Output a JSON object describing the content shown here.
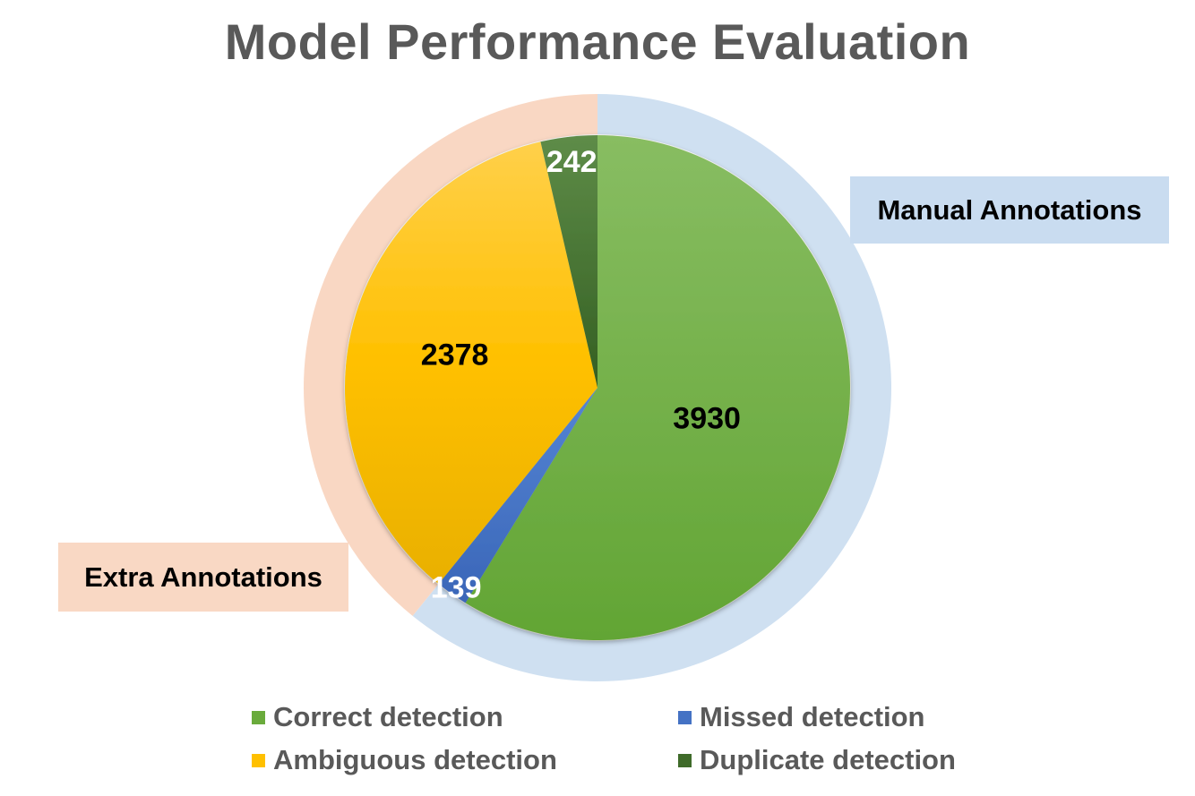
{
  "chart_data": {
    "type": "pie",
    "title": "Model Performance Evaluation",
    "series": [
      {
        "categories": [
          "Correct detection",
          "Missed detection",
          "Ambiguous detection",
          "Duplicate detection"
        ],
        "values": [
          3930,
          139,
          2378,
          242
        ]
      }
    ],
    "data_labels": [
      "3930",
      "139",
      "2378",
      "242"
    ],
    "slice_colors": [
      "#6aab3c",
      "#4472c4",
      "#ffc000",
      "#3f6b2a"
    ],
    "outer_ring": [
      {
        "label": "Manual Annotations",
        "value": 4069,
        "color": "#cfe0f1"
      },
      {
        "label": "Extra Annotations",
        "value": 2620,
        "color": "#f9d7c3"
      }
    ],
    "legend": {
      "position": "bottom",
      "entries": [
        "Correct detection",
        "Missed detection",
        "Ambiguous detection",
        "Duplicate detection"
      ]
    }
  }
}
